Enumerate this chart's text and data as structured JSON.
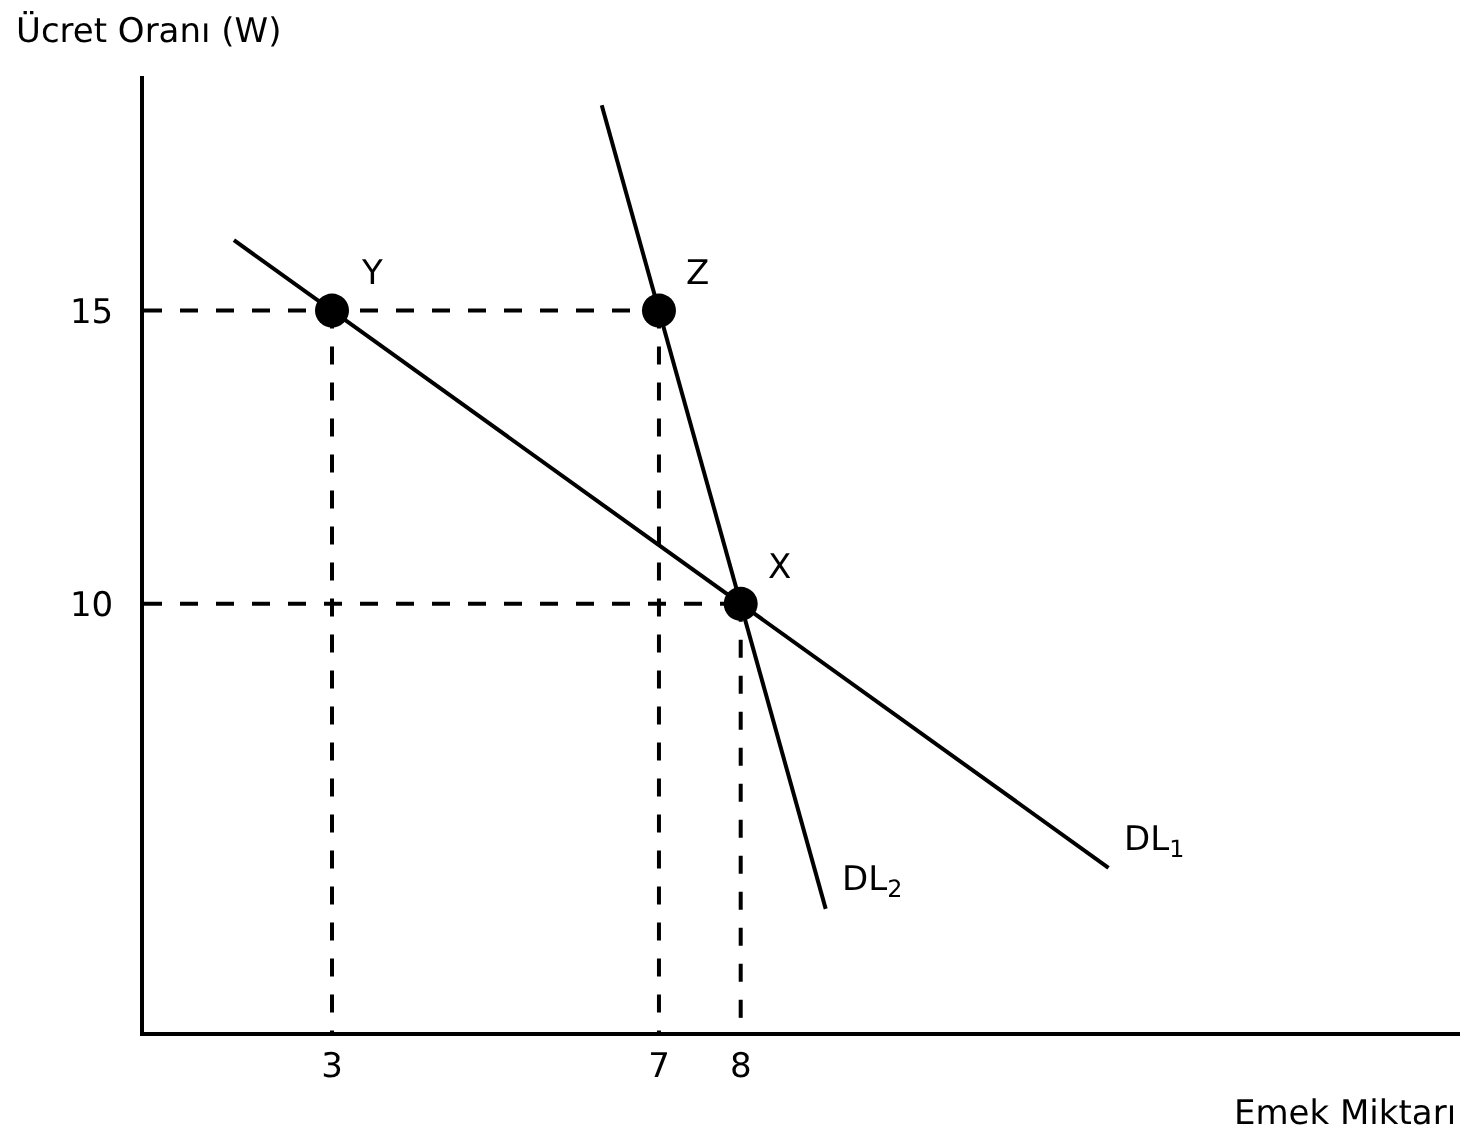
{
  "chart_data": {
    "type": "line",
    "xlabel": "Emek Miktarı",
    "ylabel": "Ücret Oranı (W)",
    "xlim": [
      0.7,
      16.8
    ],
    "ylim": [
      2.7,
      19
    ],
    "xticks": [
      3,
      7,
      8
    ],
    "yticks": [
      10,
      15
    ],
    "series": [
      {
        "name": "DL$_{1}$",
        "color": "#000000",
        "x": [
          1.8,
          12.5
        ],
        "values": [
          16.2,
          5.5
        ],
        "line_style": "solid",
        "marker": "none"
      },
      {
        "name": "DL$_{2}$",
        "color": "#000000",
        "x": [
          6.3,
          9.04
        ],
        "values": [
          18.5,
          4.8
        ],
        "line_style": "solid",
        "marker": "none"
      },
      {
        "color": "#000000",
        "x": [
          0.7,
          7
        ],
        "values": [
          15,
          15
        ],
        "line_style": "dashed",
        "marker": "none"
      },
      {
        "color": "#000000",
        "x": [
          0.7,
          8
        ],
        "values": [
          10,
          10
        ],
        "line_style": "dashed",
        "marker": "none"
      },
      {
        "color": "#000000",
        "x": [
          3,
          3
        ],
        "values": [
          15,
          2.7
        ],
        "line_style": "dashed",
        "marker": "none"
      },
      {
        "color": "#000000",
        "x": [
          7,
          7
        ],
        "values": [
          15,
          2.7
        ],
        "line_style": "dashed",
        "marker": "none"
      },
      {
        "color": "#000000",
        "x": [
          8,
          8
        ],
        "values": [
          10,
          2.7
        ],
        "line_style": "dashed",
        "marker": "none"
      },
      {
        "type": "scatter",
        "color": "#000000",
        "x": [
          3,
          7,
          8
        ],
        "values": [
          15,
          15,
          10
        ],
        "marker": "circle"
      }
    ],
    "annotations": [
      {
        "text": "Y",
        "x": 3,
        "y": 15
      },
      {
        "text": "Z",
        "x": 7,
        "y": 15
      },
      {
        "text": "X",
        "x": 8,
        "y": 10
      }
    ]
  }
}
